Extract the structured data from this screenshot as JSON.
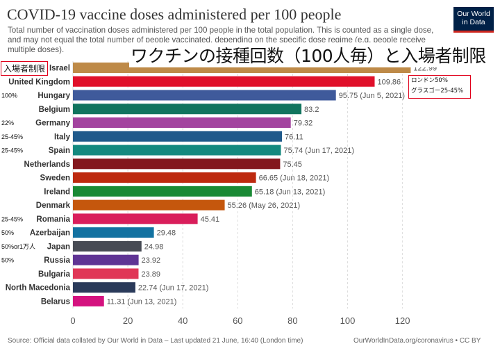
{
  "header": {
    "title": "COVID-19 vaccine doses administered per 100 people",
    "subtitle": "Total number of vaccination doses administered per 100 people in the total population. This is counted as a single dose, and may not equal the total number of people vaccinated, depending on the specific dose regime (e.g. people receive multiple doses).",
    "logo_line1": "Our World",
    "logo_line2": "in Data"
  },
  "overlay": {
    "jp_title": "ワクチンの接種回数（100人毎）と入場者制限",
    "box_label": "入場者制限",
    "callout_line1": "ロンドン50%",
    "callout_line2": "グラスゴー25-45%"
  },
  "footer": {
    "source": "Source: Official data collated by Our World in Data – Last updated 21 June, 16:40 (London time)",
    "credit": "OurWorldInData.org/coronavirus • CC BY"
  },
  "chart_data": {
    "type": "bar",
    "orientation": "horizontal",
    "categories": [
      "Israel",
      "United Kingdom",
      "Hungary",
      "Belgium",
      "Germany",
      "Italy",
      "Spain",
      "Netherlands",
      "Sweden",
      "Ireland",
      "Denmark",
      "Romania",
      "Azerbaijan",
      "Japan",
      "Russia",
      "Bulgaria",
      "North Macedonia",
      "Belarus"
    ],
    "values": [
      122.99,
      109.86,
      95.75,
      83.2,
      79.32,
      76.11,
      75.74,
      75.45,
      66.65,
      65.18,
      55.26,
      45.41,
      29.48,
      24.98,
      23.92,
      23.89,
      22.74,
      11.31
    ],
    "value_labels": [
      "122.99",
      "109.86",
      "95.75 (Jun 5, 2021)",
      "83.2",
      "79.32",
      "76.11",
      "75.74 (Jun 17, 2021)",
      "75.45",
      "66.65 (Jun 18, 2021)",
      "65.18 (Jun 13, 2021)",
      "55.26 (May 26, 2021)",
      "45.41",
      "29.48",
      "24.98",
      "23.92",
      "23.89",
      "22.74 (Jun 17, 2021)",
      "11.31 (Jun 13, 2021)"
    ],
    "colors": [
      "#be8a48",
      "#e0102a",
      "#3f5a9b",
      "#11745e",
      "#a3449f",
      "#205a8b",
      "#14897f",
      "#83171d",
      "#bd2a0f",
      "#1a8a35",
      "#c5570d",
      "#d91e5b",
      "#1372a1",
      "#474b54",
      "#5f3494",
      "#e03656",
      "#2a3a5a",
      "#d4127f"
    ],
    "annotations": [
      "",
      "",
      "100%",
      "",
      "22%",
      "25-45%",
      "25-45%",
      "",
      "",
      "",
      "",
      "25-45%",
      "50%",
      "50%or1万人",
      "50%",
      "",
      "",
      ""
    ],
    "xlim": [
      0,
      130
    ],
    "xticks": [
      0,
      20,
      40,
      60,
      80,
      100,
      120
    ],
    "grid": true
  }
}
